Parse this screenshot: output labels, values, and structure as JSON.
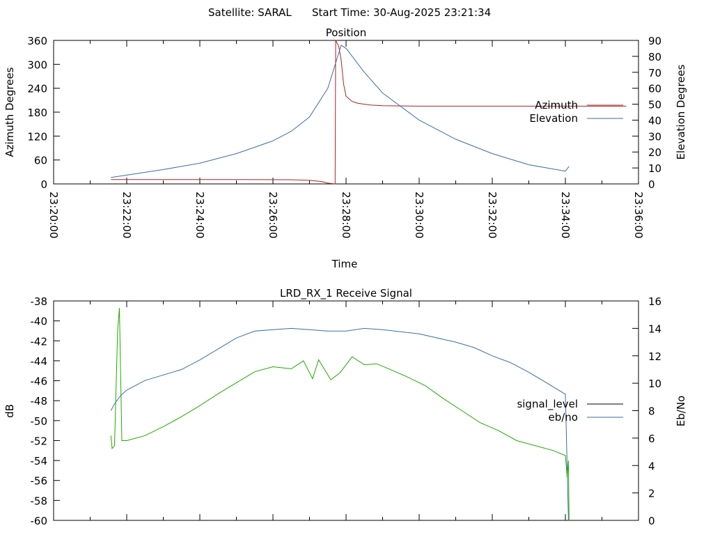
{
  "header": {
    "satellite_label": "Satellite: SARAL",
    "start_time_label": "Start Time: 30-Aug-2025 23:21:34"
  },
  "colors": {
    "azimuth": "#b02020",
    "elevation": "#3a6ea5",
    "signal_level": "#000000",
    "ebno": "#3a6ea5",
    "ebno_trace": "#1faa00",
    "axes": "#000000"
  },
  "chart_data": [
    {
      "type": "line",
      "title": "Position",
      "xlabel": "Time",
      "ylabel": "Azimuth Degrees",
      "y2label": "Elevation Degrees",
      "xlim": [
        "23:20:00",
        "23:36:00"
      ],
      "x_ticks": [
        "23:20:00",
        "23:22:00",
        "23:24:00",
        "23:26:00",
        "23:28:00",
        "23:30:00",
        "23:32:00",
        "23:34:00",
        "23:36:00"
      ],
      "ylim": [
        0,
        360
      ],
      "y_ticks": [
        "0",
        "60",
        "120",
        "180",
        "240",
        "300",
        "360"
      ],
      "y2lim": [
        0,
        90
      ],
      "y2_ticks": [
        "0",
        "10",
        "20",
        "30",
        "40",
        "50",
        "60",
        "70",
        "80",
        "90"
      ],
      "legend_position": "right",
      "series": [
        {
          "name": "Azimuth",
          "axis": "y",
          "x": [
            "23:21:34",
            "23:23:00",
            "23:25:00",
            "23:26:30",
            "23:27:00",
            "23:27:20",
            "23:27:30",
            "23:27:42",
            "23:27:43",
            "23:27:48",
            "23:27:52",
            "23:27:56",
            "23:28:00",
            "23:28:10",
            "23:28:20",
            "23:28:40",
            "23:29:00",
            "23:30:00",
            "23:32:00",
            "23:34:00",
            "23:35:40"
          ],
          "values": [
            11,
            11,
            11,
            10.5,
            9,
            6,
            2,
            0,
            360,
            345,
            310,
            250,
            220,
            207,
            202,
            198,
            196,
            195,
            195,
            195,
            195
          ]
        },
        {
          "name": "Elevation",
          "axis": "y2",
          "x": [
            "23:21:34",
            "23:22:00",
            "23:23:00",
            "23:24:00",
            "23:25:00",
            "23:26:00",
            "23:26:30",
            "23:27:00",
            "23:27:30",
            "23:27:52",
            "23:28:00",
            "23:28:30",
            "23:29:00",
            "23:30:00",
            "23:31:00",
            "23:32:00",
            "23:33:00",
            "23:34:00",
            "23:34:06"
          ],
          "values": [
            4,
            5.5,
            9,
            13,
            19,
            27,
            33,
            42,
            60,
            87,
            85,
            70,
            57,
            40,
            28,
            19,
            12,
            8,
            11
          ]
        }
      ]
    },
    {
      "type": "line",
      "title": "LRD_RX_1 Receive Signal",
      "xlabel": "",
      "ylabel": "dB",
      "y2label": "Eb/No",
      "xlim": [
        "23:20:00",
        "23:36:00"
      ],
      "ylim": [
        -60,
        -38
      ],
      "y_ticks": [
        "-38",
        "-40",
        "-42",
        "-44",
        "-46",
        "-48",
        "-50",
        "-52",
        "-54",
        "-56",
        "-58",
        "-60"
      ],
      "y2lim": [
        0,
        16
      ],
      "y2_ticks": [
        "0",
        "2",
        "4",
        "6",
        "8",
        "10",
        "12",
        "14",
        "16"
      ],
      "legend_position": "right",
      "series": [
        {
          "name": "signal_level",
          "axis": "y",
          "x": [],
          "values": []
        },
        {
          "name": "eb/no",
          "axis": "y2",
          "x": [
            "23:21:34",
            "23:21:40",
            "23:21:50",
            "23:22:00",
            "23:22:30",
            "23:23:00",
            "23:23:30",
            "23:24:00",
            "23:24:30",
            "23:25:00",
            "23:25:30",
            "23:26:00",
            "23:26:30",
            "23:27:00",
            "23:27:30",
            "23:28:00",
            "23:28:30",
            "23:29:00",
            "23:30:00",
            "23:31:00",
            "23:31:30",
            "23:32:00",
            "23:32:30",
            "23:33:00",
            "23:33:30",
            "23:34:00",
            "23:34:05"
          ],
          "values": [
            8,
            8.5,
            9.1,
            9.5,
            10.2,
            10.6,
            11,
            11.7,
            12.5,
            13.3,
            13.8,
            13.9,
            14,
            13.9,
            13.8,
            13.8,
            14,
            13.9,
            13.6,
            13,
            12.6,
            12,
            11.5,
            10.8,
            10,
            9.2,
            0
          ]
        },
        {
          "name": "",
          "axis": "y",
          "x": [
            "23:21:34",
            "23:21:36",
            "23:21:40",
            "23:21:45",
            "23:21:48",
            "23:21:52",
            "23:22:00",
            "23:22:30",
            "23:23:00",
            "23:23:30",
            "23:24:00",
            "23:24:30",
            "23:25:00",
            "23:25:30",
            "23:26:00",
            "23:26:30",
            "23:26:50",
            "23:27:05",
            "23:27:15",
            "23:27:35",
            "23:27:50",
            "23:28:10",
            "23:28:30",
            "23:28:50",
            "23:29:10",
            "23:29:40",
            "23:30:10",
            "23:30:40",
            "23:31:10",
            "23:31:40",
            "23:32:10",
            "23:32:40",
            "23:33:10",
            "23:33:40",
            "23:34:00",
            "23:34:03",
            "23:34:05",
            "23:34:06"
          ],
          "values": [
            -51.5,
            -52.8,
            -52.5,
            -41,
            -38.7,
            -52,
            -52,
            -51.5,
            -50.6,
            -49.6,
            -48.5,
            -47.3,
            -46.2,
            -45.1,
            -44.6,
            -44.8,
            -44,
            -45.8,
            -43.9,
            -45.9,
            -45.2,
            -43.6,
            -44.4,
            -44.3,
            -44.8,
            -45.6,
            -46.5,
            -47.8,
            -49,
            -50.2,
            -51,
            -52,
            -52.5,
            -53,
            -53.5,
            -55.7,
            -54,
            -60
          ]
        }
      ]
    }
  ]
}
